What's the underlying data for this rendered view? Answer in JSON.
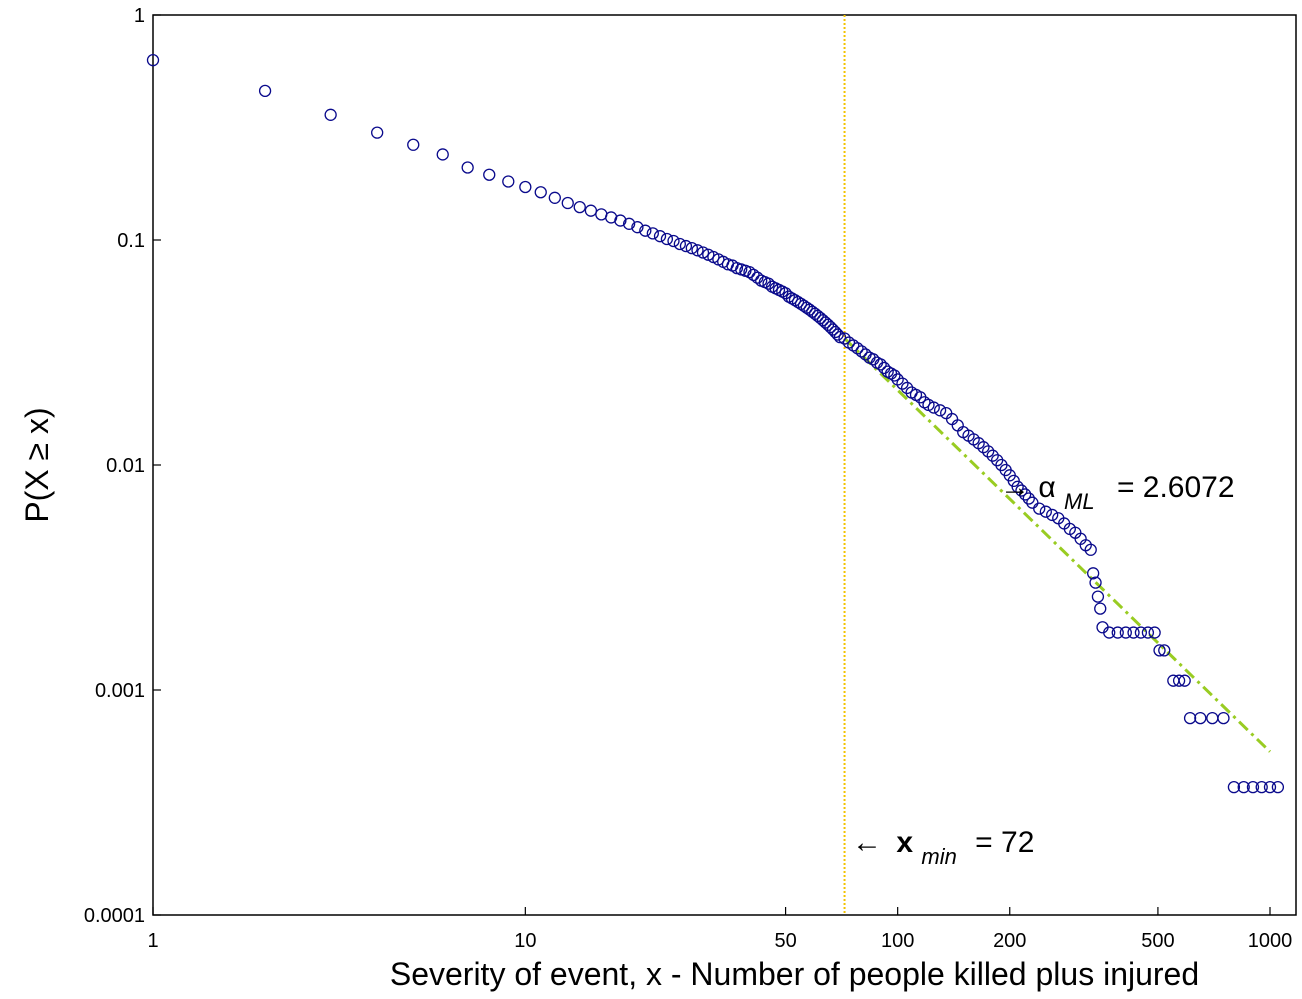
{
  "chart_data": {
    "type": "scatter",
    "title": "",
    "xlabel": "Severity of event, x - Number of people killed plus injured",
    "ylabel": "P(X ≥ x)",
    "xscale": "log",
    "yscale": "log",
    "xlim": [
      1,
      1100
    ],
    "ylim": [
      0.0001,
      1
    ],
    "grid": false,
    "legend": "none",
    "x_ticks": [
      {
        "value": 1,
        "label": "1"
      },
      {
        "value": 10,
        "label": "10"
      },
      {
        "value": 50,
        "label": "50"
      },
      {
        "value": 100,
        "label": "100"
      },
      {
        "value": 200,
        "label": "200"
      },
      {
        "value": 500,
        "label": "500"
      },
      {
        "value": 1000,
        "label": "1000"
      }
    ],
    "y_ticks": [
      {
        "value": 0.0001,
        "label": "0.0001"
      },
      {
        "value": 0.001,
        "label": "0.001"
      },
      {
        "value": 0.01,
        "label": "0.01"
      },
      {
        "value": 0.1,
        "label": "0.1"
      },
      {
        "value": 1,
        "label": "1"
      }
    ],
    "colors": {
      "points": "#0a0a8c",
      "fit": "#99cc22",
      "xmin_line": "#f2c200",
      "axis": "#000000"
    },
    "series": [
      {
        "kind": "points",
        "points": [
          [
            1,
            0.63
          ],
          [
            2,
            0.46
          ],
          [
            3,
            0.36
          ],
          [
            4,
            0.3
          ],
          [
            5,
            0.265
          ],
          [
            6,
            0.24
          ],
          [
            7,
            0.21
          ],
          [
            8,
            0.195
          ],
          [
            9,
            0.182
          ],
          [
            10,
            0.172
          ],
          [
            11,
            0.163
          ],
          [
            12,
            0.154
          ],
          [
            13,
            0.146
          ],
          [
            14,
            0.14
          ],
          [
            15,
            0.135
          ],
          [
            16,
            0.13
          ],
          [
            17,
            0.126
          ],
          [
            18,
            0.122
          ],
          [
            19,
            0.118
          ],
          [
            20,
            0.114
          ],
          [
            21,
            0.11
          ],
          [
            22,
            0.107
          ],
          [
            23,
            0.104
          ],
          [
            24,
            0.101
          ],
          [
            25,
            0.099
          ],
          [
            26,
            0.096
          ],
          [
            27,
            0.094
          ],
          [
            28,
            0.092
          ],
          [
            29,
            0.09
          ],
          [
            30,
            0.088
          ],
          [
            31,
            0.086
          ],
          [
            32,
            0.084
          ],
          [
            33,
            0.082
          ],
          [
            34,
            0.08
          ],
          [
            35,
            0.078
          ],
          [
            36,
            0.077
          ],
          [
            37,
            0.075
          ],
          [
            38,
            0.074
          ],
          [
            39,
            0.073
          ],
          [
            40,
            0.072
          ],
          [
            41,
            0.07
          ],
          [
            42,
            0.068
          ],
          [
            43,
            0.066
          ],
          [
            44,
            0.065
          ],
          [
            45,
            0.064
          ],
          [
            46,
            0.062
          ],
          [
            47,
            0.061
          ],
          [
            48,
            0.06
          ],
          [
            49,
            0.059
          ],
          [
            50,
            0.058
          ],
          [
            51,
            0.056
          ],
          [
            52,
            0.055
          ],
          [
            53,
            0.054
          ],
          [
            54,
            0.053
          ],
          [
            55,
            0.052
          ],
          [
            56,
            0.051
          ],
          [
            57,
            0.05
          ],
          [
            58,
            0.049
          ],
          [
            59,
            0.048
          ],
          [
            60,
            0.047
          ],
          [
            61,
            0.046
          ],
          [
            62,
            0.045
          ],
          [
            63,
            0.044
          ],
          [
            64,
            0.043
          ],
          [
            65,
            0.042
          ],
          [
            66,
            0.041
          ],
          [
            67,
            0.04
          ],
          [
            68,
            0.039
          ],
          [
            69,
            0.038
          ],
          [
            70,
            0.037
          ],
          [
            72,
            0.0365
          ],
          [
            74,
            0.035
          ],
          [
            76,
            0.034
          ],
          [
            78,
            0.033
          ],
          [
            80,
            0.032
          ],
          [
            82,
            0.031
          ],
          [
            84,
            0.03
          ],
          [
            86,
            0.0295
          ],
          [
            88,
            0.0285
          ],
          [
            90,
            0.028
          ],
          [
            92,
            0.027
          ],
          [
            94,
            0.026
          ],
          [
            96,
            0.0255
          ],
          [
            98,
            0.025
          ],
          [
            100,
            0.024
          ],
          [
            103,
            0.023
          ],
          [
            106,
            0.022
          ],
          [
            109,
            0.021
          ],
          [
            112,
            0.0205
          ],
          [
            115,
            0.02
          ],
          [
            118,
            0.019
          ],
          [
            121,
            0.0185
          ],
          [
            125,
            0.018
          ],
          [
            130,
            0.0175
          ],
          [
            135,
            0.017
          ],
          [
            140,
            0.016
          ],
          [
            145,
            0.015
          ],
          [
            150,
            0.014
          ],
          [
            155,
            0.0135
          ],
          [
            160,
            0.013
          ],
          [
            165,
            0.0125
          ],
          [
            170,
            0.012
          ],
          [
            175,
            0.0115
          ],
          [
            180,
            0.011
          ],
          [
            185,
            0.0105
          ],
          [
            190,
            0.01
          ],
          [
            195,
            0.0095
          ],
          [
            200,
            0.009
          ],
          [
            205,
            0.0085
          ],
          [
            210,
            0.008
          ],
          [
            215,
            0.0077
          ],
          [
            220,
            0.0074
          ],
          [
            225,
            0.0071
          ],
          [
            230,
            0.0068
          ],
          [
            240,
            0.0064
          ],
          [
            250,
            0.0062
          ],
          [
            260,
            0.006
          ],
          [
            270,
            0.0058
          ],
          [
            280,
            0.0055
          ],
          [
            290,
            0.0052
          ],
          [
            300,
            0.005
          ],
          [
            310,
            0.0047
          ],
          [
            320,
            0.0044
          ],
          [
            330,
            0.0042
          ],
          [
            335,
            0.0033
          ],
          [
            340,
            0.003
          ],
          [
            345,
            0.0026
          ],
          [
            350,
            0.0023
          ],
          [
            355,
            0.0019
          ],
          [
            370,
            0.0018
          ],
          [
            390,
            0.0018
          ],
          [
            410,
            0.0018
          ],
          [
            430,
            0.0018
          ],
          [
            450,
            0.0018
          ],
          [
            470,
            0.0018
          ],
          [
            490,
            0.0018
          ],
          [
            505,
            0.0015
          ],
          [
            520,
            0.0015
          ],
          [
            550,
            0.0011
          ],
          [
            570,
            0.0011
          ],
          [
            590,
            0.0011
          ],
          [
            610,
            0.00075
          ],
          [
            650,
            0.00075
          ],
          [
            700,
            0.00075
          ],
          [
            750,
            0.00075
          ],
          [
            800,
            0.00037
          ],
          [
            850,
            0.00037
          ],
          [
            900,
            0.00037
          ],
          [
            950,
            0.00037
          ],
          [
            1000,
            0.00037
          ],
          [
            1050,
            0.00037
          ]
        ]
      },
      {
        "kind": "fit",
        "x_start": 72,
        "x_end": 1000,
        "y_start": 0.0365,
        "alpha": 2.6072
      }
    ],
    "xmin_value": 72,
    "annotations": {
      "alpha_arrow": "→",
      "alpha_symbol": "α",
      "alpha_sub": "ML",
      "alpha_value": " = 2.6072",
      "xmin_arrow": "←",
      "xmin_symbol": "x",
      "xmin_sub": "min",
      "xmin_value_text": " = 72"
    }
  }
}
